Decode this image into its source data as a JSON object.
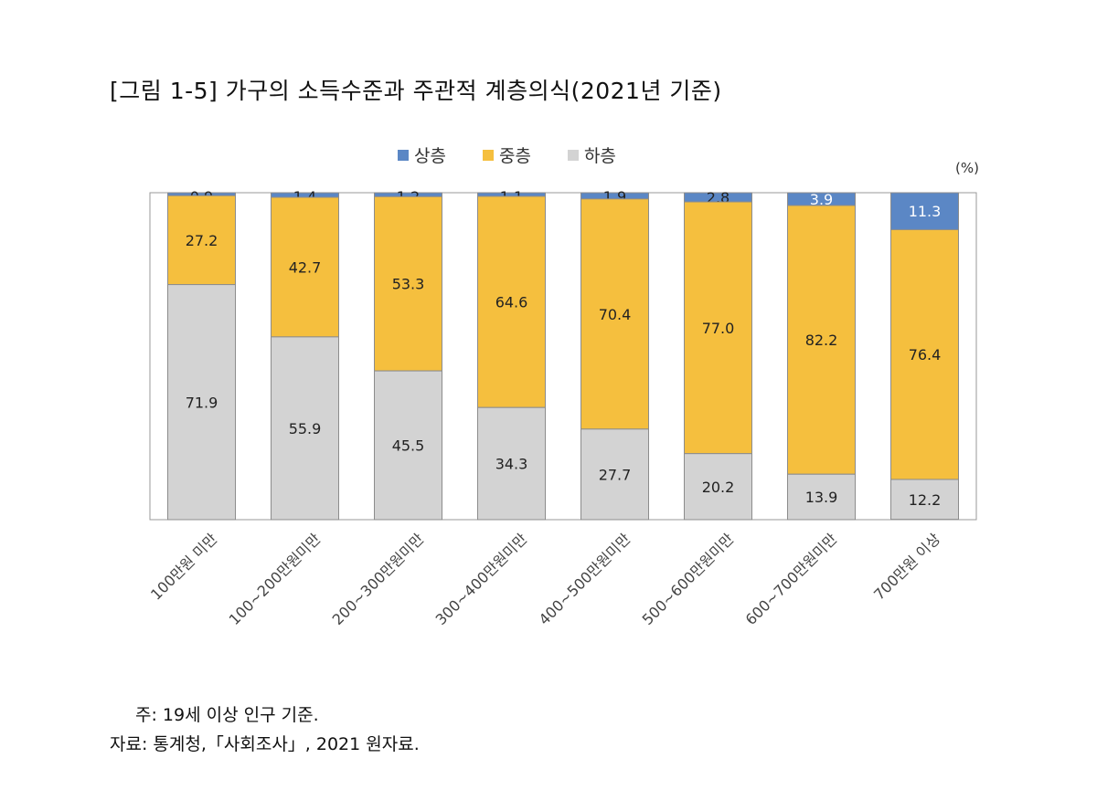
{
  "title": "[그림 1-5] 가구의 소득수준과 주관적 계층의식(2021년 기준)",
  "unit_label": "(%)",
  "note": "주: 19세 이상 인구 기준.",
  "source": "자료: 통계청,「사회조사」, 2021 원자료.",
  "colors": {
    "upper": "#5b87c5",
    "middle": "#f5bf3e",
    "lower": "#d3d3d3",
    "outline": "#8c8c8c"
  },
  "chart_data": {
    "type": "bar",
    "stacked": true,
    "title": "[그림 1-5] 가구의 소득수준과 주관적 계층의식(2021년 기준)",
    "ylabel": "(%)",
    "ylim": [
      0,
      100
    ],
    "legend_position": "top",
    "categories": [
      "100만원 미만",
      "100~200만원미만",
      "200~300만원미만",
      "300~400만원미만",
      "400~500만원미만",
      "500~600만원미만",
      "600~700만원미만",
      "700만원 이상"
    ],
    "series": [
      {
        "name": "상층",
        "values": [
          0.9,
          1.4,
          1.2,
          1.1,
          1.9,
          2.8,
          3.9,
          11.3
        ]
      },
      {
        "name": "중층",
        "values": [
          27.2,
          42.7,
          53.3,
          64.6,
          70.4,
          77.0,
          82.2,
          76.4
        ]
      },
      {
        "name": "하층",
        "values": [
          71.9,
          55.9,
          45.5,
          34.3,
          27.7,
          20.2,
          13.9,
          12.2
        ]
      }
    ]
  }
}
